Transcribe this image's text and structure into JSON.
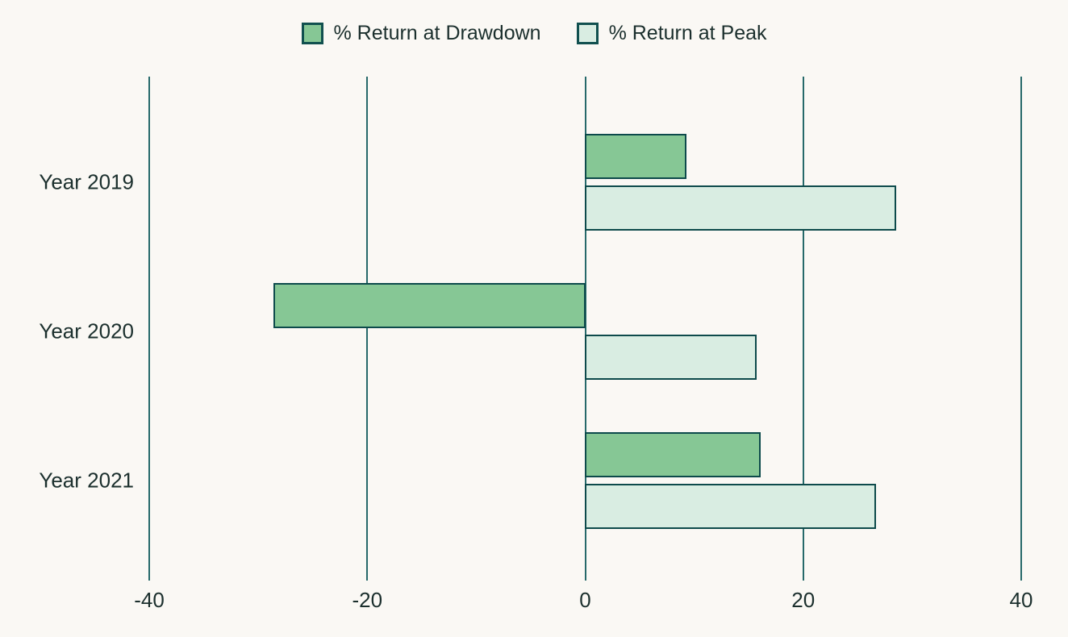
{
  "chart_data": {
    "type": "bar",
    "orientation": "horizontal",
    "title": "",
    "categories": [
      "Year 2019",
      "Year 2020",
      "Year 2021"
    ],
    "series": [
      {
        "name": "% Return at Drawdown",
        "color": "#86c795",
        "values": [
          9.3,
          -28.6,
          16.1
        ]
      },
      {
        "name": "% Return at Peak",
        "color": "#d9ede2",
        "values": [
          28.5,
          15.7,
          26.7
        ]
      }
    ],
    "xlim": [
      -40,
      40
    ],
    "x_ticks": [
      -40,
      -20,
      0,
      20,
      40
    ],
    "x_tick_labels": [
      "-40",
      "-20",
      "0",
      "20",
      "40"
    ],
    "xlabel": "",
    "ylabel": "",
    "grid": "vertical-only",
    "legend_position": "top-center",
    "colors": {
      "background": "#faf8f4",
      "grid_line": "#26696a",
      "bar_border": "#0d4a4b",
      "text": "#1b2f2d",
      "swatch_border": "#11504f"
    }
  }
}
